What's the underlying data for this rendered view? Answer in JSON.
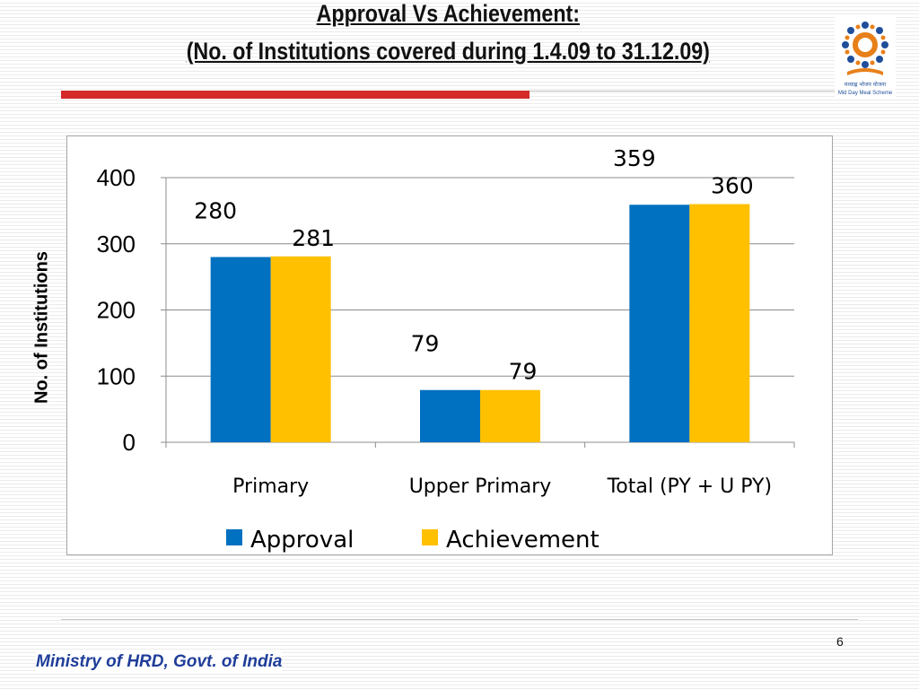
{
  "slide": {
    "title_line1": "Approval Vs Achievement:",
    "title_line2": " (No. of Institutions covered during 1.4.09 to 31.12.09)",
    "logo_text_hindi": "मध्याह्न भोजन योजना",
    "logo_text_english": "Mid Day Meal Scheme",
    "page_number": "6",
    "footer": "Ministry of HRD, Govt. of India",
    "accent_color": "#d42a2a",
    "footer_color": "#1f3d99"
  },
  "chart_data": {
    "type": "bar",
    "title": "",
    "xlabel": "",
    "ylabel": "No. of Institutions",
    "categories": [
      "Primary",
      "Upper Primary",
      "Total (PY + U PY)"
    ],
    "series": [
      {
        "name": "Approval",
        "values": [
          280,
          79,
          359
        ],
        "color": "#0070c0"
      },
      {
        "name": "Achievement",
        "values": [
          281,
          79,
          360
        ],
        "color": "#ffc000"
      }
    ],
    "ylim": [
      0,
      400
    ],
    "yticks": [
      0,
      100,
      200,
      300,
      400
    ],
    "grid": true,
    "legend_position": "bottom"
  }
}
